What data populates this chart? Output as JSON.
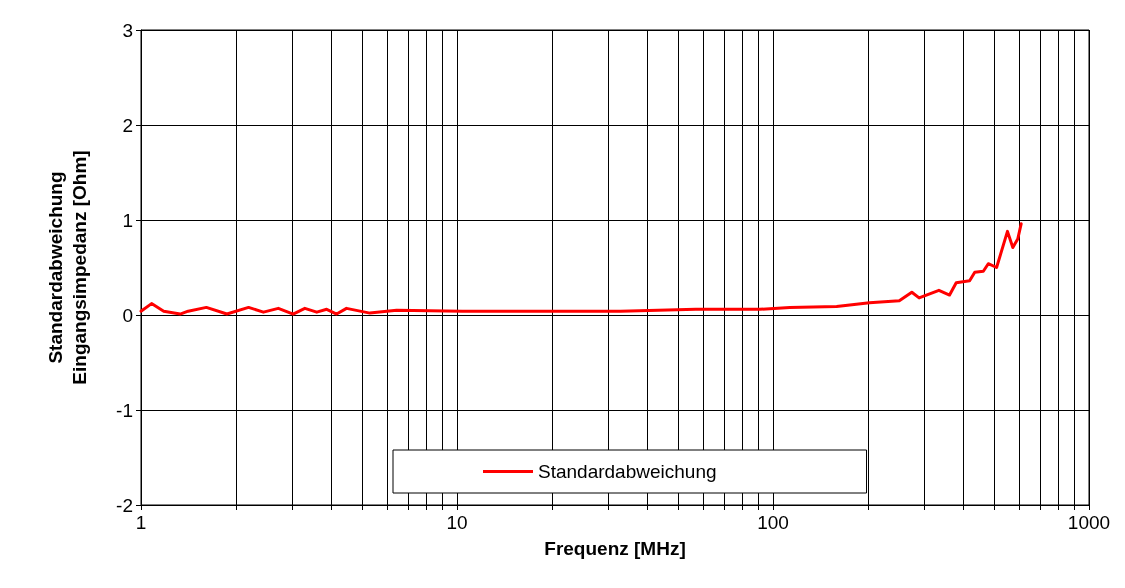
{
  "chart_data": {
    "type": "line",
    "xlabel": "Frequenz [MHz]",
    "ylabel": "Standardabweichung\nEingangsimpedanz [Ohm]",
    "log": "x",
    "grid": true,
    "legend": "bottom",
    "marker": "none",
    "line_style": "solid",
    "xlim": [
      1,
      1000
    ],
    "ylim": [
      -2,
      3
    ],
    "xticks": [
      1,
      {
        "value": 2,
        "label": null
      },
      {
        "value": 3,
        "label": null
      },
      {
        "value": 4,
        "label": null
      },
      {
        "value": 5,
        "label": null
      },
      {
        "value": 6,
        "label": null
      },
      {
        "value": 7,
        "label": null
      },
      {
        "value": 8,
        "label": null
      },
      {
        "value": 9,
        "label": null
      },
      10,
      {
        "value": 20,
        "label": null
      },
      {
        "value": 30,
        "label": null
      },
      {
        "value": 40,
        "label": null
      },
      {
        "value": 50,
        "label": null
      },
      {
        "value": 60,
        "label": null
      },
      {
        "value": 70,
        "label": null
      },
      {
        "value": 80,
        "label": null
      },
      {
        "value": 90,
        "label": null
      },
      100,
      {
        "value": 200,
        "label": null
      },
      {
        "value": 300,
        "label": null
      },
      {
        "value": 400,
        "label": null
      },
      {
        "value": 500,
        "label": null
      },
      {
        "value": 600,
        "label": null
      },
      {
        "value": 700,
        "label": null
      },
      {
        "value": 800,
        "label": null
      },
      {
        "value": 900,
        "label": null
      },
      1000
    ],
    "yticks": [
      -2,
      -1,
      0,
      1,
      2,
      3
    ],
    "series": [
      {
        "name": "Standardabweichung",
        "color": "#ff0000",
        "x": [
          1.0,
          1.08,
          1.18,
          1.33,
          1.41,
          1.61,
          1.87,
          2.19,
          2.44,
          2.72,
          3.03,
          3.3,
          3.6,
          3.87,
          4.16,
          4.47,
          5.3,
          6.44,
          10.4,
          32.9,
          57,
          90.6,
          113,
          159,
          202,
          251,
          275,
          290,
          335,
          362,
          380,
          419,
          435,
          463,
          480,
          510,
          552,
          574,
          595,
          610
        ],
        "values": [
          0.04,
          0.12,
          0.04,
          0.01,
          0.04,
          0.08,
          0.01,
          0.08,
          0.03,
          0.07,
          0.01,
          0.07,
          0.03,
          0.06,
          0.01,
          0.07,
          0.02,
          0.05,
          0.04,
          0.04,
          0.06,
          0.06,
          0.08,
          0.09,
          0.13,
          0.15,
          0.24,
          0.18,
          0.26,
          0.21,
          0.34,
          0.36,
          0.45,
          0.46,
          0.54,
          0.5,
          0.88,
          0.71,
          0.8,
          0.96
        ]
      }
    ]
  }
}
